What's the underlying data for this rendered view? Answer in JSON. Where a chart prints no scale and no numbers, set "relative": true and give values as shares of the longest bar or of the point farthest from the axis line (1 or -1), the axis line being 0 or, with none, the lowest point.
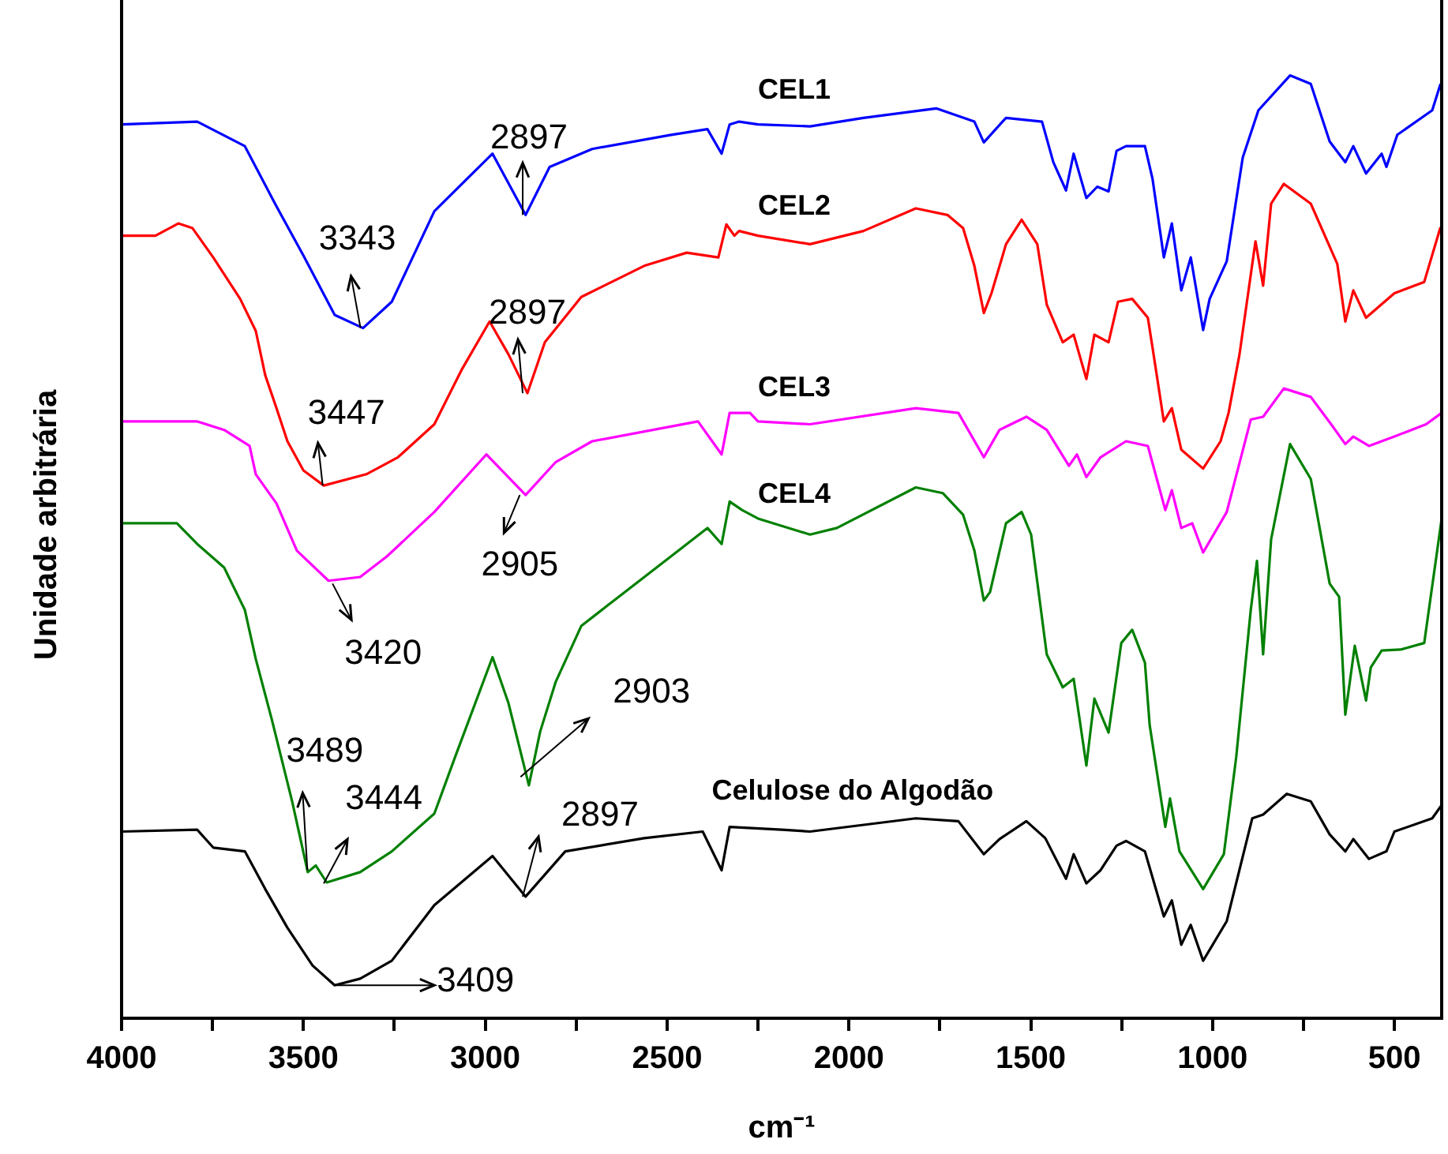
{
  "chart_data": {
    "type": "line",
    "relative": true,
    "xlabel": "cm⁻¹",
    "ylabel": "Unidade arbitrária",
    "xlim": [
      4000,
      370
    ],
    "xticks": [
      4000,
      {
        "value": 3750,
        "label": null
      },
      3500,
      {
        "value": 3250,
        "label": null
      },
      3000,
      {
        "value": 2750,
        "label": null
      },
      2500,
      {
        "value": 2250,
        "label": null
      },
      2000,
      {
        "value": 1750,
        "label": null
      },
      1500,
      {
        "value": 1250,
        "label": null
      },
      1000,
      {
        "value": 750,
        "label": null
      },
      500
    ],
    "grid": false,
    "legend": false,
    "marker": "none",
    "line_style": "solid",
    "series": [
      {
        "name": "CEL1",
        "color": "#0000ff",
        "x": [
          4000,
          3792,
          3661,
          3574,
          3500,
          3414,
          3336,
          3257,
          3140,
          2980,
          2889,
          2823,
          2706,
          2489,
          2389,
          2350,
          2328,
          2302,
          2250,
          2107,
          1960,
          1760,
          1655,
          1629,
          1568,
          1469,
          1438,
          1403,
          1382,
          1347,
          1317,
          1286,
          1264,
          1238,
          1186,
          1165,
          1134,
          1112,
          1086,
          1060,
          1026,
          1008,
          961,
          917,
          874,
          787,
          730,
          678,
          635,
          613,
          578,
          535,
          522,
          492,
          396,
          374
        ],
        "values": [
          0.948,
          0.951,
          0.925,
          0.861,
          0.809,
          0.746,
          0.732,
          0.76,
          0.856,
          0.917,
          0.852,
          0.903,
          0.922,
          0.937,
          0.943,
          0.917,
          0.948,
          0.951,
          0.948,
          0.946,
          0.955,
          0.965,
          0.951,
          0.929,
          0.955,
          0.951,
          0.908,
          0.878,
          0.917,
          0.87,
          0.882,
          0.877,
          0.92,
          0.925,
          0.925,
          0.89,
          0.807,
          0.843,
          0.772,
          0.807,
          0.73,
          0.763,
          0.803,
          0.913,
          0.963,
          1.0,
          0.991,
          0.93,
          0.908,
          0.925,
          0.896,
          0.917,
          0.903,
          0.937,
          0.963,
          0.99
        ]
      },
      {
        "name": "CEL2",
        "color": "#ff0000",
        "x": [
          4000,
          3907,
          3844,
          3805,
          3748,
          3674,
          3631,
          3605,
          3574,
          3544,
          3500,
          3444,
          3327,
          3240,
          3140,
          3066,
          2988,
          2936,
          2884,
          2836,
          2736,
          2563,
          2446,
          2359,
          2337,
          2315,
          2302,
          2250,
          2107,
          1960,
          1816,
          1729,
          1686,
          1655,
          1629,
          1608,
          1568,
          1525,
          1482,
          1456,
          1412,
          1382,
          1347,
          1325,
          1286,
          1260,
          1221,
          1178,
          1165,
          1134,
          1112,
          1086,
          1026,
          978,
          956,
          926,
          882,
          861,
          839,
          804,
          730,
          657,
          635,
          613,
          578,
          500,
          418,
          374
        ],
        "values": [
          0.83,
          0.83,
          0.843,
          0.838,
          0.807,
          0.763,
          0.729,
          0.682,
          0.647,
          0.612,
          0.581,
          0.565,
          0.577,
          0.595,
          0.63,
          0.687,
          0.739,
          0.704,
          0.663,
          0.717,
          0.765,
          0.798,
          0.812,
          0.807,
          0.842,
          0.83,
          0.835,
          0.83,
          0.821,
          0.835,
          0.859,
          0.852,
          0.838,
          0.798,
          0.748,
          0.769,
          0.821,
          0.847,
          0.821,
          0.757,
          0.717,
          0.725,
          0.678,
          0.725,
          0.717,
          0.76,
          0.763,
          0.743,
          0.711,
          0.633,
          0.647,
          0.603,
          0.583,
          0.612,
          0.642,
          0.704,
          0.824,
          0.777,
          0.864,
          0.885,
          0.864,
          0.8,
          0.739,
          0.772,
          0.743,
          0.769,
          0.781,
          0.838
        ]
      },
      {
        "name": "CEL3",
        "color": "#ff00ff",
        "x": [
          4000,
          3792,
          3718,
          3648,
          3631,
          3574,
          3518,
          3431,
          3344,
          3270,
          3140,
          2997,
          2889,
          2806,
          2706,
          2415,
          2350,
          2328,
          2272,
          2250,
          2107,
          1816,
          1699,
          1629,
          1586,
          1512,
          1456,
          1395,
          1373,
          1347,
          1308,
          1238,
          1178,
          1130,
          1112,
          1086,
          1056,
          1026,
          961,
          895,
          861,
          804,
          730,
          674,
          635,
          613,
          570,
          500,
          413,
          370
        ],
        "values": [
          0.633,
          0.633,
          0.624,
          0.607,
          0.577,
          0.546,
          0.496,
          0.464,
          0.468,
          0.49,
          0.537,
          0.598,
          0.555,
          0.59,
          0.612,
          0.633,
          0.598,
          0.642,
          0.642,
          0.633,
          0.63,
          0.647,
          0.642,
          0.595,
          0.624,
          0.638,
          0.624,
          0.586,
          0.598,
          0.574,
          0.595,
          0.612,
          0.607,
          0.539,
          0.56,
          0.52,
          0.525,
          0.494,
          0.537,
          0.635,
          0.638,
          0.668,
          0.659,
          0.63,
          0.609,
          0.617,
          0.607,
          0.617,
          0.63,
          0.642
        ]
      },
      {
        "name": "CEL4",
        "color": "#008000",
        "x": [
          4000,
          3848,
          3792,
          3718,
          3661,
          3631,
          3587,
          3531,
          3488,
          3466,
          3436,
          3344,
          3257,
          3140,
          3083,
          2980,
          2936,
          2880,
          2849,
          2806,
          2736,
          2663,
          2489,
          2389,
          2350,
          2328,
          2294,
          2250,
          2107,
          2033,
          1816,
          1742,
          1686,
          1655,
          1629,
          1612,
          1568,
          1525,
          1499,
          1456,
          1412,
          1382,
          1347,
          1325,
          1286,
          1251,
          1221,
          1186,
          1173,
          1130,
          1117,
          1091,
          1026,
          969,
          935,
          895,
          878,
          861,
          839,
          787,
          730,
          678,
          652,
          635,
          609,
          578,
          565,
          535,
          483,
          418,
          370
        ],
        "values": [
          0.525,
          0.525,
          0.503,
          0.478,
          0.433,
          0.381,
          0.317,
          0.23,
          0.155,
          0.162,
          0.144,
          0.155,
          0.177,
          0.217,
          0.277,
          0.383,
          0.334,
          0.247,
          0.304,
          0.357,
          0.416,
          0.438,
          0.49,
          0.52,
          0.503,
          0.548,
          0.539,
          0.53,
          0.513,
          0.52,
          0.563,
          0.557,
          0.534,
          0.496,
          0.443,
          0.452,
          0.525,
          0.537,
          0.513,
          0.386,
          0.351,
          0.36,
          0.268,
          0.339,
          0.303,
          0.398,
          0.412,
          0.377,
          0.311,
          0.203,
          0.233,
          0.177,
          0.137,
          0.174,
          0.277,
          0.433,
          0.485,
          0.386,
          0.508,
          0.609,
          0.572,
          0.461,
          0.447,
          0.322,
          0.395,
          0.337,
          0.372,
          0.39,
          0.391,
          0.398,
          0.53
        ]
      },
      {
        "name": "Celulose do Algodão",
        "color": "#000000",
        "x": [
          4000,
          3792,
          3748,
          3661,
          3605,
          3544,
          3475,
          3414,
          3344,
          3257,
          3140,
          2980,
          2889,
          2780,
          2563,
          2402,
          2350,
          2328,
          2185,
          2107,
          1816,
          1699,
          1629,
          1586,
          1512,
          1460,
          1403,
          1382,
          1347,
          1308,
          1264,
          1238,
          1186,
          1134,
          1112,
          1086,
          1060,
          1026,
          961,
          891,
          861,
          796,
          730,
          678,
          635,
          613,
          570,
          522,
          500,
          396,
          370
        ],
        "values": [
          0.198,
          0.2,
          0.181,
          0.177,
          0.137,
          0.096,
          0.056,
          0.035,
          0.042,
          0.061,
          0.12,
          0.172,
          0.129,
          0.177,
          0.191,
          0.198,
          0.157,
          0.203,
          0.2,
          0.198,
          0.212,
          0.209,
          0.174,
          0.19,
          0.209,
          0.191,
          0.148,
          0.174,
          0.143,
          0.157,
          0.183,
          0.188,
          0.177,
          0.108,
          0.125,
          0.078,
          0.099,
          0.061,
          0.103,
          0.212,
          0.216,
          0.238,
          0.23,
          0.195,
          0.177,
          0.19,
          0.169,
          0.177,
          0.198,
          0.212,
          0.226
        ]
      }
    ],
    "annotations": [
      {
        "text": "3343",
        "x": 3343,
        "y": 0.732
      },
      {
        "text": "2897",
        "x": 2897,
        "y": 0.852
      },
      {
        "text": "2897",
        "x": 2897,
        "y": 0.663
      },
      {
        "text": "3447",
        "x": 3447,
        "y": 0.565
      },
      {
        "text": "3420",
        "x": 3420,
        "y": 0.461
      },
      {
        "text": "2905",
        "x": 2905,
        "y": 0.555
      },
      {
        "text": "2903",
        "x": 2903,
        "y": 0.256
      },
      {
        "text": "3489",
        "x": 3489,
        "y": 0.157
      },
      {
        "text": "3444",
        "x": 3444,
        "y": 0.143
      },
      {
        "text": "2897",
        "x": 2897,
        "y": 0.129
      },
      {
        "text": "3409",
        "x": 3409,
        "y": 0.035
      }
    ]
  }
}
